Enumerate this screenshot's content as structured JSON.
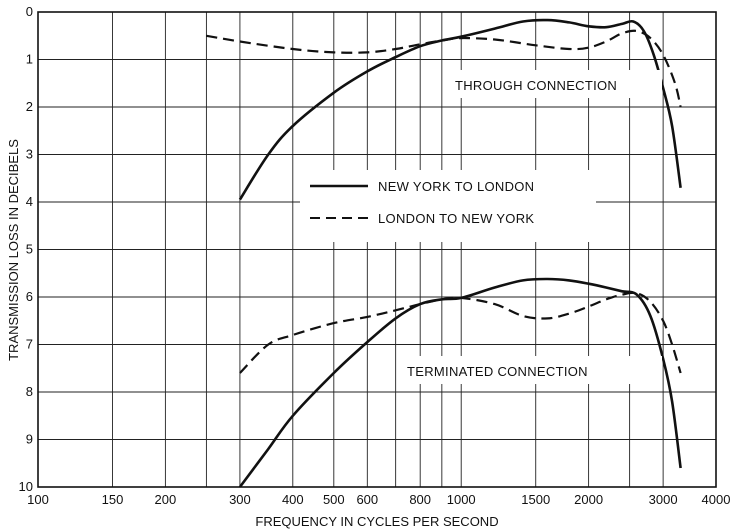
{
  "chart_data": {
    "type": "line",
    "title": "",
    "xlabel": "FREQUENCY IN CYCLES PER SECOND",
    "ylabel": "TRANSMISSION LOSS IN DECIBELS",
    "x_scale": "log",
    "xlim": [
      100,
      4000
    ],
    "ylim": [
      0,
      10
    ],
    "y_inverted": true,
    "grid": true,
    "x_ticks": [
      100,
      150,
      200,
      300,
      400,
      500,
      600,
      800,
      1000,
      1500,
      2000,
      3000,
      4000
    ],
    "x_tick_labels": [
      "100",
      "150",
      "200",
      "300",
      "400",
      "500",
      "600",
      "800",
      "1000",
      "1500",
      "2000",
      "3000",
      "4000"
    ],
    "y_ticks": [
      0,
      1,
      2,
      3,
      4,
      5,
      6,
      7,
      8,
      9,
      10
    ],
    "y_tick_labels": [
      "0",
      "1",
      "2",
      "3",
      "4",
      "5",
      "6",
      "7",
      "8",
      "9",
      "10"
    ],
    "legend": {
      "placement": "center",
      "entries": [
        {
          "label": "NEW YORK TO LONDON",
          "style": "solid"
        },
        {
          "label": "LONDON TO NEW YORK",
          "style": "dashed"
        }
      ]
    },
    "annotations": [
      "THROUGH CONNECTION",
      "TERMINATED CONNECTION"
    ],
    "series": [
      {
        "name": "NEW YORK TO LONDON",
        "group": "THROUGH CONNECTION",
        "style": "solid",
        "x": [
          300,
          350,
          400,
          500,
          600,
          700,
          800,
          900,
          1000,
          1200,
          1400,
          1600,
          1800,
          2000,
          2200,
          2400,
          2550,
          2700,
          2850,
          3000,
          3150,
          3300
        ],
        "y": [
          3.95,
          3.0,
          2.4,
          1.7,
          1.25,
          0.95,
          0.72,
          0.6,
          0.52,
          0.35,
          0.2,
          0.17,
          0.22,
          0.3,
          0.32,
          0.25,
          0.2,
          0.4,
          0.9,
          1.6,
          2.4,
          3.7
        ]
      },
      {
        "name": "LONDON TO NEW YORK",
        "group": "THROUGH CONNECTION",
        "style": "dashed",
        "x": [
          250,
          300,
          400,
          500,
          600,
          700,
          800,
          900,
          1000,
          1200,
          1500,
          1800,
          2000,
          2200,
          2400,
          2600,
          2800,
          3000,
          3200,
          3300
        ],
        "y": [
          0.5,
          0.62,
          0.78,
          0.85,
          0.85,
          0.78,
          0.68,
          0.6,
          0.55,
          0.58,
          0.7,
          0.78,
          0.75,
          0.62,
          0.45,
          0.4,
          0.55,
          0.9,
          1.5,
          2.0
        ]
      },
      {
        "name": "NEW YORK TO LONDON",
        "group": "TERMINATED CONNECTION",
        "style": "solid",
        "x": [
          300,
          350,
          400,
          500,
          600,
          700,
          800,
          900,
          1000,
          1200,
          1400,
          1600,
          1800,
          2000,
          2200,
          2400,
          2600,
          2800,
          3000,
          3150,
          3300
        ],
        "y": [
          10.0,
          9.2,
          8.5,
          7.6,
          6.95,
          6.45,
          6.15,
          6.05,
          6.02,
          5.8,
          5.65,
          5.62,
          5.65,
          5.72,
          5.8,
          5.88,
          5.95,
          6.4,
          7.3,
          8.2,
          9.6
        ]
      },
      {
        "name": "LONDON TO NEW YORK",
        "group": "TERMINATED CONNECTION",
        "style": "dashed",
        "x": [
          300,
          350,
          400,
          500,
          600,
          700,
          800,
          900,
          1000,
          1200,
          1400,
          1600,
          1800,
          2000,
          2200,
          2400,
          2600,
          2800,
          3000,
          3150,
          3300
        ],
        "y": [
          7.6,
          7.0,
          6.8,
          6.55,
          6.42,
          6.28,
          6.15,
          6.05,
          6.02,
          6.15,
          6.4,
          6.45,
          6.35,
          6.2,
          6.05,
          5.95,
          5.92,
          6.1,
          6.5,
          7.0,
          7.6
        ]
      }
    ]
  }
}
